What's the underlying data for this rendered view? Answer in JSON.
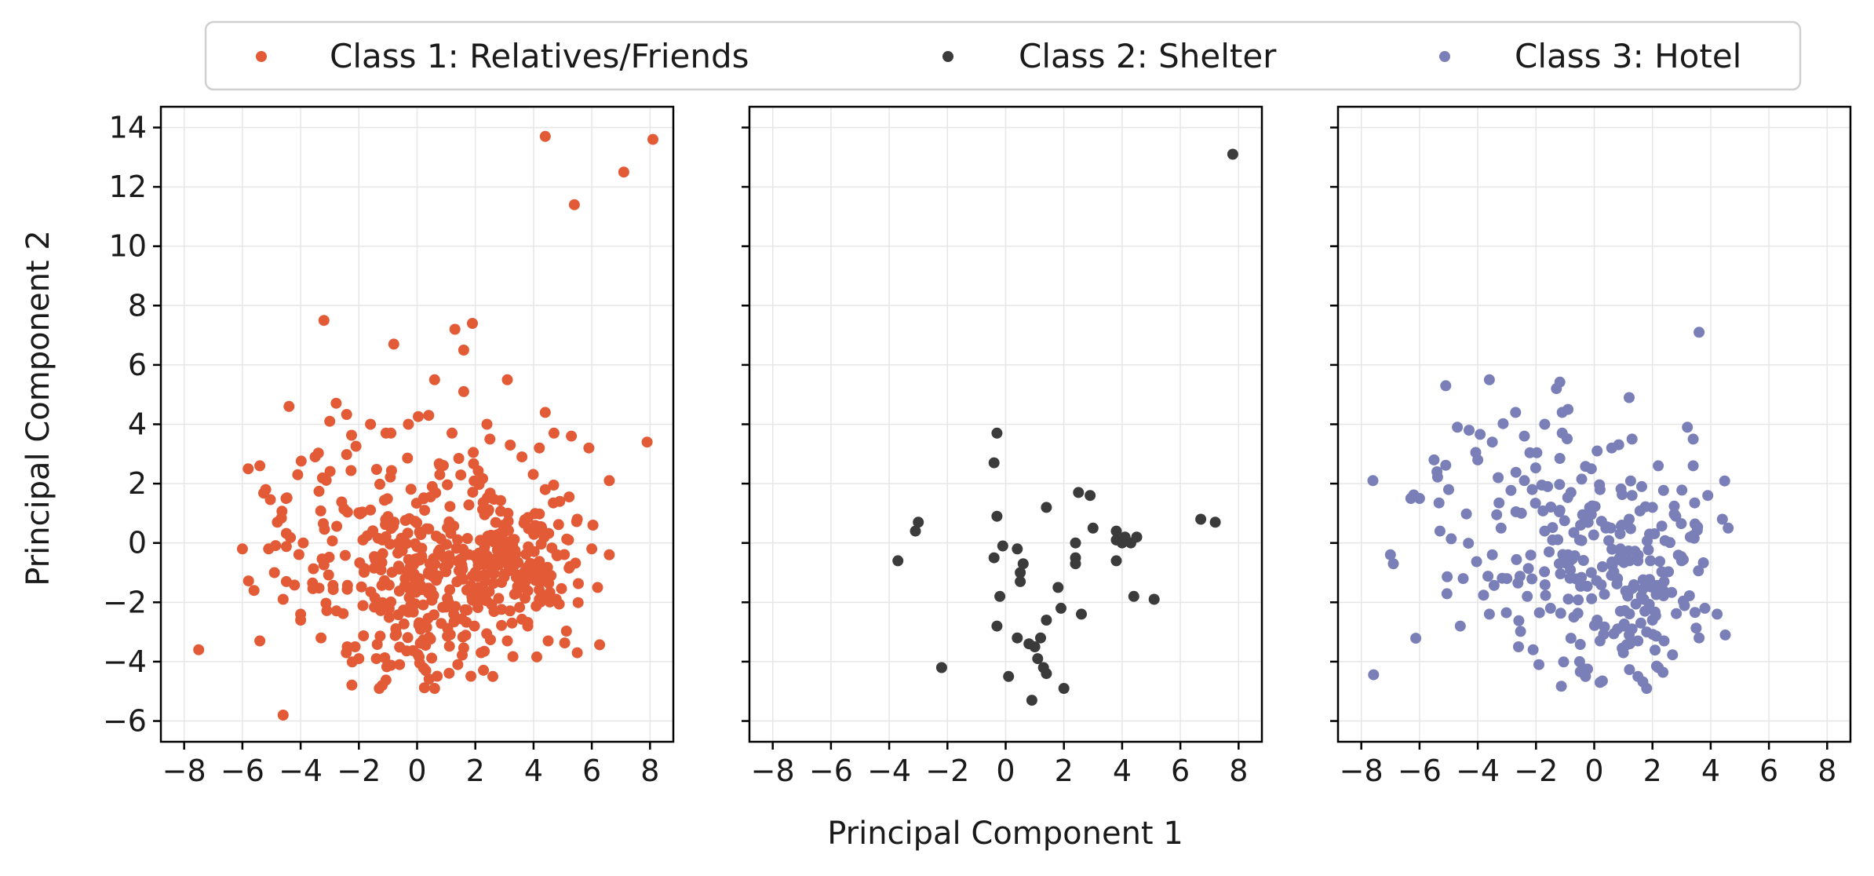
{
  "chart_data": {
    "type": "scatter",
    "layout": "1x3 subplots, shared y-axis",
    "xlabel": "Principal Component 1",
    "ylabel": "Principal Component 2",
    "xlim": [
      -8.8,
      8.8
    ],
    "ylim": [
      -6.7,
      14.7
    ],
    "xticks": [
      -8,
      -6,
      -4,
      -2,
      0,
      2,
      4,
      6,
      8
    ],
    "yticks": [
      -6,
      -4,
      -2,
      0,
      2,
      4,
      6,
      8,
      10,
      12,
      14
    ],
    "grid": true,
    "legend_position": "top-center",
    "series": [
      {
        "name": "Class 1: Relatives/Friends",
        "color": "#E35A37",
        "approx_point_count": 560,
        "points": [
          [
            4.4,
            13.7
          ],
          [
            8.1,
            13.6
          ],
          [
            7.1,
            12.5
          ],
          [
            5.4,
            11.4
          ],
          [
            -3.2,
            7.5
          ],
          [
            1.9,
            7.4
          ],
          [
            1.3,
            7.2
          ],
          [
            -0.8,
            6.7
          ],
          [
            1.6,
            6.5
          ],
          [
            0.6,
            5.5
          ],
          [
            3.1,
            5.5
          ],
          [
            1.6,
            5.1
          ],
          [
            -4.4,
            4.6
          ],
          [
            4.4,
            4.4
          ],
          [
            2.4,
            4.0
          ],
          [
            0.4,
            4.3
          ],
          [
            7.9,
            3.4
          ],
          [
            6.6,
            2.1
          ],
          [
            5.9,
            3.2
          ],
          [
            5.3,
            3.6
          ],
          [
            4.7,
            3.7
          ],
          [
            -7.5,
            -3.6
          ],
          [
            -4.6,
            -5.8
          ],
          [
            -6.0,
            -0.2
          ],
          [
            6.2,
            -1.5
          ],
          [
            6.0,
            -0.2
          ],
          [
            6.6,
            -0.4
          ],
          [
            5.5,
            -3.7
          ],
          [
            4.5,
            -3.3
          ],
          [
            2.6,
            -4.5
          ],
          [
            0.6,
            -4.9
          ],
          [
            -1.2,
            -4.8
          ],
          [
            -1.3,
            -4.9
          ],
          [
            -2.0,
            -3.9
          ],
          [
            -5.4,
            -3.3
          ],
          [
            -5.6,
            -1.6
          ],
          [
            -5.8,
            2.5
          ],
          [
            -5.4,
            2.6
          ],
          [
            -5.2,
            1.8
          ],
          [
            -3.0,
            4.1
          ],
          [
            -1.6,
            4.0
          ],
          [
            -0.9,
            3.7
          ],
          [
            -0.3,
            4.0
          ],
          [
            1.2,
            3.7
          ],
          [
            2.5,
            3.5
          ],
          [
            3.2,
            3.3
          ],
          [
            3.6,
            2.9
          ],
          [
            4.2,
            3.2
          ],
          [
            4.4,
            1.8
          ],
          [
            4.9,
            1.4
          ],
          [
            5.5,
            0.8
          ],
          [
            5.2,
            0.1
          ],
          [
            4.8,
            -0.4
          ],
          [
            4.6,
            -1.1
          ],
          [
            4.2,
            -1.9
          ],
          [
            3.8,
            -2.8
          ],
          [
            3.1,
            -3.3
          ],
          [
            2.2,
            -3.7
          ],
          [
            1.4,
            -4.1
          ],
          [
            0.3,
            -4.3
          ],
          [
            -0.6,
            -4.1
          ],
          [
            -1.4,
            -3.9
          ],
          [
            -2.4,
            -3.5
          ],
          [
            -3.3,
            -3.2
          ],
          [
            -4.0,
            -2.6
          ],
          [
            -4.6,
            -1.9
          ],
          [
            -4.9,
            -1.0
          ],
          [
            -5.1,
            -0.2
          ],
          [
            -4.8,
            0.7
          ],
          [
            -4.5,
            1.5
          ],
          [
            -4.1,
            2.3
          ],
          [
            -3.5,
            2.9
          ]
        ]
      },
      {
        "name": "Class 2: Shelter",
        "color": "#3B3B3B",
        "approx_point_count": 48,
        "points": [
          [
            7.8,
            13.1
          ],
          [
            -0.3,
            3.7
          ],
          [
            -0.4,
            2.7
          ],
          [
            -3.0,
            0.7
          ],
          [
            -3.1,
            0.4
          ],
          [
            -3.7,
            -0.6
          ],
          [
            -2.2,
            -4.2
          ],
          [
            -0.3,
            0.9
          ],
          [
            -0.4,
            -0.5
          ],
          [
            -0.1,
            -0.1
          ],
          [
            0.1,
            -4.5
          ],
          [
            -0.2,
            -1.8
          ],
          [
            -0.3,
            -2.8
          ],
          [
            0.4,
            -0.2
          ],
          [
            0.6,
            -0.7
          ],
          [
            0.5,
            -1.0
          ],
          [
            0.5,
            -1.3
          ],
          [
            0.4,
            -3.2
          ],
          [
            0.8,
            -3.4
          ],
          [
            1.0,
            -3.5
          ],
          [
            1.1,
            -3.9
          ],
          [
            1.2,
            -3.2
          ],
          [
            1.3,
            -4.2
          ],
          [
            1.4,
            -4.4
          ],
          [
            0.9,
            -5.3
          ],
          [
            2.0,
            -4.9
          ],
          [
            1.4,
            1.2
          ],
          [
            1.4,
            -2.6
          ],
          [
            1.8,
            -1.5
          ],
          [
            1.9,
            -2.2
          ],
          [
            2.4,
            -0.5
          ],
          [
            2.4,
            -0.7
          ],
          [
            2.5,
            1.7
          ],
          [
            2.9,
            1.6
          ],
          [
            3.0,
            0.5
          ],
          [
            2.4,
            0.0
          ],
          [
            2.6,
            -2.4
          ],
          [
            3.8,
            0.4
          ],
          [
            3.8,
            0.1
          ],
          [
            4.0,
            0.0
          ],
          [
            4.1,
            0.2
          ],
          [
            4.3,
            0.0
          ],
          [
            4.5,
            0.2
          ],
          [
            3.8,
            -0.6
          ],
          [
            4.4,
            -1.8
          ],
          [
            5.1,
            -1.9
          ],
          [
            6.7,
            0.8
          ],
          [
            7.2,
            0.7
          ]
        ]
      },
      {
        "name": "Class 3: Hotel",
        "color": "#7A7FB8",
        "approx_point_count": 300,
        "points": [
          [
            3.6,
            7.1
          ],
          [
            -5.1,
            5.3
          ],
          [
            -3.6,
            5.5
          ],
          [
            -1.3,
            5.2
          ],
          [
            1.2,
            4.9
          ],
          [
            -2.7,
            4.4
          ],
          [
            -0.9,
            4.5
          ],
          [
            -1.1,
            4.4
          ],
          [
            -4.7,
            3.9
          ],
          [
            -4.3,
            3.8
          ],
          [
            -7.6,
            2.1
          ],
          [
            -7.0,
            -0.4
          ],
          [
            -6.9,
            -0.7
          ],
          [
            -6.3,
            1.5
          ],
          [
            -6.0,
            1.5
          ],
          [
            -5.0,
            1.8
          ],
          [
            -5.3,
            0.4
          ],
          [
            -5.5,
            2.8
          ],
          [
            -5.4,
            2.4
          ],
          [
            -4.6,
            -2.8
          ],
          [
            -4.5,
            -1.2
          ],
          [
            -3.6,
            -2.4
          ],
          [
            -2.6,
            -3.5
          ],
          [
            -2.1,
            -3.6
          ],
          [
            -1.9,
            -4.1
          ],
          [
            -0.5,
            -4.0
          ],
          [
            -0.3,
            -4.5
          ],
          [
            0.2,
            -3.3
          ],
          [
            0.2,
            -4.7
          ],
          [
            1.0,
            -3.7
          ],
          [
            1.5,
            -4.5
          ],
          [
            1.8,
            -4.9
          ],
          [
            2.2,
            -4.2
          ],
          [
            2.4,
            -3.3
          ],
          [
            3.6,
            -3.2
          ],
          [
            4.5,
            -3.1
          ],
          [
            3.8,
            -2.2
          ],
          [
            4.6,
            0.5
          ],
          [
            4.4,
            0.8
          ],
          [
            3.9,
            1.6
          ],
          [
            3.4,
            3.5
          ],
          [
            3.2,
            3.9
          ],
          [
            3.4,
            2.6
          ],
          [
            2.2,
            2.6
          ],
          [
            1.3,
            3.5
          ],
          [
            0.6,
            3.2
          ],
          [
            0.1,
            3.1
          ],
          [
            -0.1,
            2.5
          ],
          [
            -1.1,
            3.7
          ],
          [
            -1.7,
            4.0
          ],
          [
            -2.4,
            3.6
          ],
          [
            -3.5,
            3.4
          ],
          [
            -4.0,
            2.8
          ],
          [
            -3.3,
            2.2
          ],
          [
            -2.4,
            2.1
          ],
          [
            -1.6,
            1.9
          ],
          [
            -0.8,
            1.7
          ],
          [
            0.2,
            1.8
          ],
          [
            1.3,
            1.6
          ],
          [
            2.0,
            1.2
          ],
          [
            2.8,
            0.9
          ],
          [
            3.3,
            0.2
          ],
          [
            3.0,
            -0.6
          ],
          [
            2.4,
            -1.3
          ],
          [
            1.7,
            -1.9
          ],
          [
            0.9,
            -2.3
          ],
          [
            0.1,
            -2.6
          ],
          [
            -0.7,
            -2.5
          ],
          [
            -1.5,
            -2.2
          ],
          [
            -2.3,
            -1.8
          ],
          [
            -3.0,
            -1.2
          ],
          [
            -3.5,
            -0.4
          ],
          [
            -3.2,
            0.5
          ],
          [
            -2.5,
            1.0
          ],
          [
            -1.7,
            0.4
          ],
          [
            -0.9,
            -0.4
          ],
          [
            -0.1,
            -1.0
          ],
          [
            0.8,
            -1.2
          ],
          [
            1.5,
            -0.6
          ],
          [
            1.9,
            0.3
          ],
          [
            1.2,
            0.8
          ],
          [
            0.4,
            0.5
          ],
          [
            -0.5,
            0.1
          ],
          [
            -1.2,
            -0.7
          ],
          [
            1.0,
            -2.8
          ],
          [
            1.3,
            -2.9
          ],
          [
            1.6,
            -2.7
          ],
          [
            1.8,
            -3.0
          ],
          [
            2.0,
            -2.6
          ],
          [
            1.2,
            -3.1
          ],
          [
            1.5,
            -3.3
          ],
          [
            0.8,
            -2.9
          ]
        ]
      }
    ]
  }
}
